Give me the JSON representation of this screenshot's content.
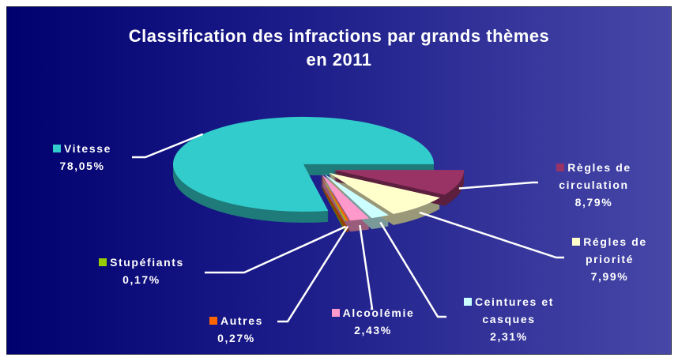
{
  "chart_data": {
    "type": "pie",
    "title": "Classification des infractions par grands thèmes en 2011",
    "categories": [
      "Vitesse",
      "Stupéfiants",
      "Autres",
      "Alcoolémie",
      "Ceintures et casques",
      "Régles de priorité",
      "Règles de circulation"
    ],
    "values": [
      78.05,
      0.17,
      0.27,
      2.43,
      2.31,
      7.99,
      8.79
    ],
    "value_labels": [
      "78,05%",
      "0,17%",
      "0,27%",
      "2,43%",
      "2,31%",
      "7,99%",
      "8,79%"
    ],
    "colors": [
      "#33cccc",
      "#99cc00",
      "#ff6600",
      "#ff99cc",
      "#ccffff",
      "#ffffcc",
      "#993366"
    ]
  }
}
